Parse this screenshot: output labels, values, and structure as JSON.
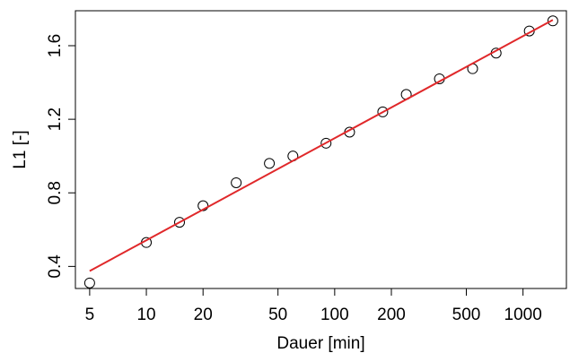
{
  "chart_data": {
    "type": "scatter",
    "xlabel": "Dauer [min]",
    "ylabel": "L1 [-]",
    "x_scale": "log",
    "xlim": [
      4.2,
      1700
    ],
    "ylim": [
      0.28,
      1.79
    ],
    "x_ticks": [
      5,
      10,
      20,
      50,
      100,
      200,
      500,
      1000
    ],
    "x_tick_labels": [
      "5",
      "10",
      "20",
      "50",
      "100",
      "200",
      "500",
      "1000"
    ],
    "y_ticks": [
      0.4,
      0.8,
      1.2,
      1.6
    ],
    "y_tick_labels": [
      "0.4",
      "0.8",
      "1.2",
      "1.6"
    ],
    "grid": false,
    "series": [
      {
        "marker": "open-circle",
        "color": "#000000",
        "x": [
          5,
          10,
          15,
          20,
          30,
          45,
          60,
          90,
          120,
          180,
          240,
          360,
          540,
          720,
          1080,
          1440
        ],
        "y": [
          0.31,
          0.53,
          0.64,
          0.73,
          0.855,
          0.96,
          1.0,
          1.07,
          1.13,
          1.24,
          1.335,
          1.42,
          1.475,
          1.56,
          1.68,
          1.735
        ]
      }
    ],
    "fit_line": {
      "color": "#e0282a",
      "x": [
        5,
        1440
      ],
      "y": [
        0.375,
        1.74
      ]
    }
  }
}
